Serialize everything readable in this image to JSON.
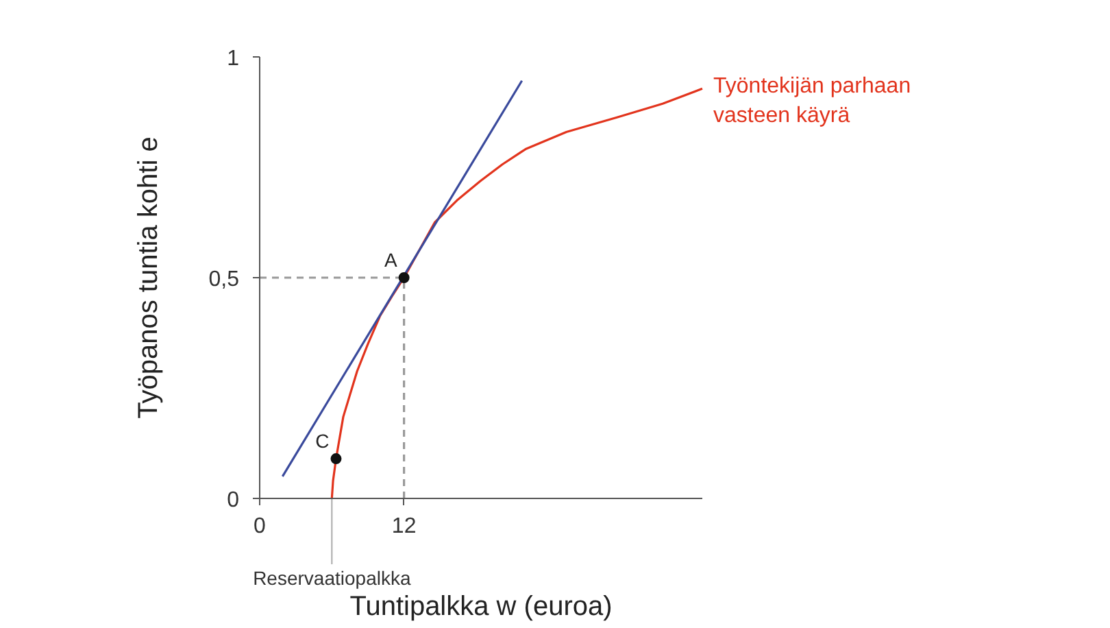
{
  "chart_data": {
    "type": "line",
    "xlabel": "Tuntipalkka w (euroa)",
    "ylabel": "Työpanos tuntia kohti e",
    "xlim": [
      0,
      36.8
    ],
    "ylim": [
      0,
      1
    ],
    "xticks": [
      0,
      12
    ],
    "yticks": [
      0,
      {
        "value": 0.5,
        "label": "0,5"
      },
      1
    ],
    "grid": false,
    "series": [
      {
        "name": "Työntekijän parhaan vasteen käyrä",
        "color": "#e2341d",
        "line_style": "solid",
        "x": [
          6.0,
          6.1,
          6.35,
          6.95,
          8.1,
          9.0,
          10.0,
          11.0,
          12,
          14.55,
          16.4,
          18.35,
          20.2,
          22.1,
          25.5,
          29.7,
          33.5,
          36.8
        ],
        "values": [
          0,
          0.04,
          0.09,
          0.185,
          0.288,
          0.35,
          0.413,
          0.458,
          0.5,
          0.625,
          0.675,
          0.719,
          0.757,
          0.791,
          0.83,
          0.863,
          0.894,
          0.928
        ]
      },
      {
        "color": "#3a4a9c",
        "line_style": "solid",
        "x": [
          1.9,
          21.8
        ],
        "values": [
          0.05,
          0.946
        ]
      },
      {
        "color": "#999999",
        "line_style": "dashed",
        "x": [
          0,
          12
        ],
        "values": [
          0.5,
          0.5
        ]
      },
      {
        "color": "#999999",
        "line_style": "dashed",
        "x": [
          12,
          12
        ],
        "values": [
          0,
          0.5
        ]
      },
      {
        "type": "scatter",
        "color": "#111111",
        "marker": "circle",
        "x": [
          12,
          6.35
        ],
        "values": [
          0.5,
          0.09
        ]
      }
    ],
    "annotations": [
      {
        "text": "A",
        "x": 12,
        "y": 0.5
      },
      {
        "text": "C",
        "x": 6.35,
        "y": 0.09
      },
      {
        "text": "Reservaatiopalkka",
        "x": 6.0,
        "y": 0
      }
    ]
  }
}
